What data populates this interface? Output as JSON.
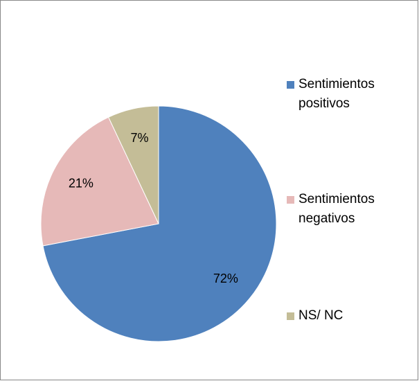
{
  "chart_data": {
    "type": "pie",
    "categories": [
      "Sentimientos positivos",
      "Sentimientos negativos",
      "NS/ NC"
    ],
    "values": [
      72,
      21,
      7
    ],
    "value_labels": [
      "72%",
      "21%",
      "7%"
    ],
    "colors": [
      "#4f81bd",
      "#e6b9b8",
      "#c4bd97"
    ],
    "legend": "right"
  }
}
